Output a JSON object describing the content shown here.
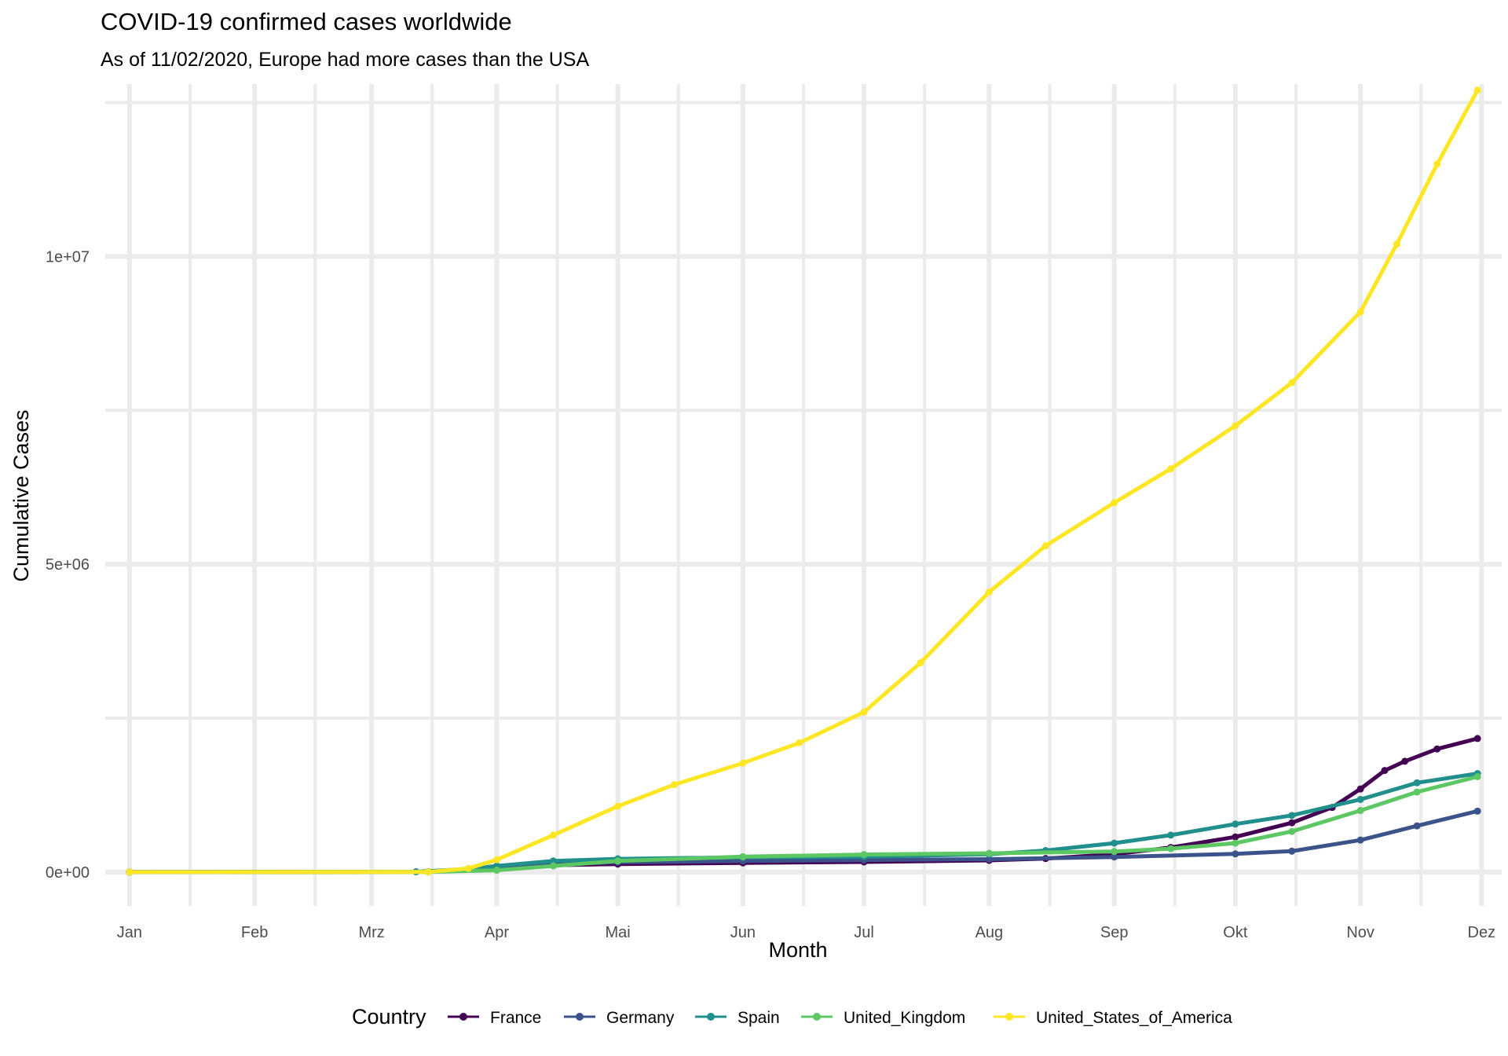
{
  "chart_data": {
    "type": "line",
    "title": "COVID-19 confirmed cases worldwide",
    "subtitle": "As of 11/02/2020, Europe had more cases than the USA",
    "xlabel": "Month",
    "ylabel": "Cumulative Cases",
    "x_ticks": [
      "Jan",
      "Feb",
      "Mrz",
      "Apr",
      "Mai",
      "Jun",
      "Jul",
      "Aug",
      "Sep",
      "Okt",
      "Nov",
      "Dez"
    ],
    "y_ticks": [
      {
        "value": 0,
        "label": "0e+00"
      },
      {
        "value": 5000000,
        "label": "5e+06"
      },
      {
        "value": 10000000,
        "label": "1e+07"
      }
    ],
    "ylim": [
      -550000,
      12800000
    ],
    "xlim": [
      "2019-12-26",
      "2020-12-06"
    ],
    "grid": true,
    "legend": {
      "title": "Country",
      "position": "bottom"
    },
    "series": [
      {
        "name": "France",
        "color": "#440154",
        "points": [
          [
            "2020-01-01",
            0
          ],
          [
            "2020-03-15",
            5000
          ],
          [
            "2020-04-01",
            60000
          ],
          [
            "2020-04-15",
            110000
          ],
          [
            "2020-05-01",
            130000
          ],
          [
            "2020-06-01",
            150000
          ],
          [
            "2020-07-01",
            165000
          ],
          [
            "2020-08-01",
            190000
          ],
          [
            "2020-08-15",
            220000
          ],
          [
            "2020-09-01",
            290000
          ],
          [
            "2020-09-15",
            400000
          ],
          [
            "2020-10-01",
            570000
          ],
          [
            "2020-10-15",
            800000
          ],
          [
            "2020-10-25",
            1050000
          ],
          [
            "2020-11-01",
            1350000
          ],
          [
            "2020-11-07",
            1650000
          ],
          [
            "2020-11-12",
            1800000
          ],
          [
            "2020-11-20",
            2000000
          ],
          [
            "2020-11-30",
            2170000
          ]
        ]
      },
      {
        "name": "Germany",
        "color": "#3b528b",
        "points": [
          [
            "2020-01-01",
            0
          ],
          [
            "2020-03-15",
            5000
          ],
          [
            "2020-04-01",
            70000
          ],
          [
            "2020-04-15",
            130000
          ],
          [
            "2020-05-01",
            160000
          ],
          [
            "2020-06-01",
            180000
          ],
          [
            "2020-07-01",
            195000
          ],
          [
            "2020-08-01",
            210000
          ],
          [
            "2020-09-01",
            245000
          ],
          [
            "2020-10-01",
            295000
          ],
          [
            "2020-10-15",
            340000
          ],
          [
            "2020-11-01",
            520000
          ],
          [
            "2020-11-15",
            750000
          ],
          [
            "2020-11-30",
            990000
          ]
        ]
      },
      {
        "name": "Spain",
        "color": "#21908c",
        "points": [
          [
            "2020-01-01",
            0
          ],
          [
            "2020-03-12",
            5000
          ],
          [
            "2020-03-25",
            50000
          ],
          [
            "2020-04-01",
            100000
          ],
          [
            "2020-04-15",
            180000
          ],
          [
            "2020-05-01",
            215000
          ],
          [
            "2020-06-01",
            240000
          ],
          [
            "2020-07-01",
            250000
          ],
          [
            "2020-08-01",
            290000
          ],
          [
            "2020-08-15",
            350000
          ],
          [
            "2020-09-01",
            470000
          ],
          [
            "2020-09-15",
            600000
          ],
          [
            "2020-10-01",
            780000
          ],
          [
            "2020-10-15",
            920000
          ],
          [
            "2020-11-01",
            1180000
          ],
          [
            "2020-11-15",
            1450000
          ],
          [
            "2020-11-30",
            1600000
          ]
        ]
      },
      {
        "name": "United_Kingdom",
        "color": "#5dc863",
        "points": [
          [
            "2020-01-01",
            0
          ],
          [
            "2020-03-15",
            1000
          ],
          [
            "2020-04-01",
            30000
          ],
          [
            "2020-04-15",
            100000
          ],
          [
            "2020-05-01",
            180000
          ],
          [
            "2020-06-01",
            250000
          ],
          [
            "2020-07-01",
            285000
          ],
          [
            "2020-08-01",
            305000
          ],
          [
            "2020-09-01",
            335000
          ],
          [
            "2020-09-15",
            380000
          ],
          [
            "2020-10-01",
            470000
          ],
          [
            "2020-10-15",
            660000
          ],
          [
            "2020-11-01",
            1000000
          ],
          [
            "2020-11-15",
            1300000
          ],
          [
            "2020-11-30",
            1550000
          ]
        ]
      },
      {
        "name": "United_States_of_America",
        "color": "#fde725",
        "points": [
          [
            "2020-01-01",
            0
          ],
          [
            "2020-03-15",
            3000
          ],
          [
            "2020-03-25",
            60000
          ],
          [
            "2020-04-01",
            200000
          ],
          [
            "2020-04-15",
            600000
          ],
          [
            "2020-05-01",
            1070000
          ],
          [
            "2020-05-15",
            1420000
          ],
          [
            "2020-06-01",
            1770000
          ],
          [
            "2020-06-15",
            2100000
          ],
          [
            "2020-07-01",
            2600000
          ],
          [
            "2020-07-15",
            3400000
          ],
          [
            "2020-08-01",
            4550000
          ],
          [
            "2020-08-15",
            5300000
          ],
          [
            "2020-09-01",
            6000000
          ],
          [
            "2020-09-15",
            6550000
          ],
          [
            "2020-10-01",
            7250000
          ],
          [
            "2020-10-15",
            7950000
          ],
          [
            "2020-11-01",
            9100000
          ],
          [
            "2020-11-10",
            10200000
          ],
          [
            "2020-11-20",
            11500000
          ],
          [
            "2020-11-30",
            12700000
          ]
        ]
      }
    ]
  }
}
